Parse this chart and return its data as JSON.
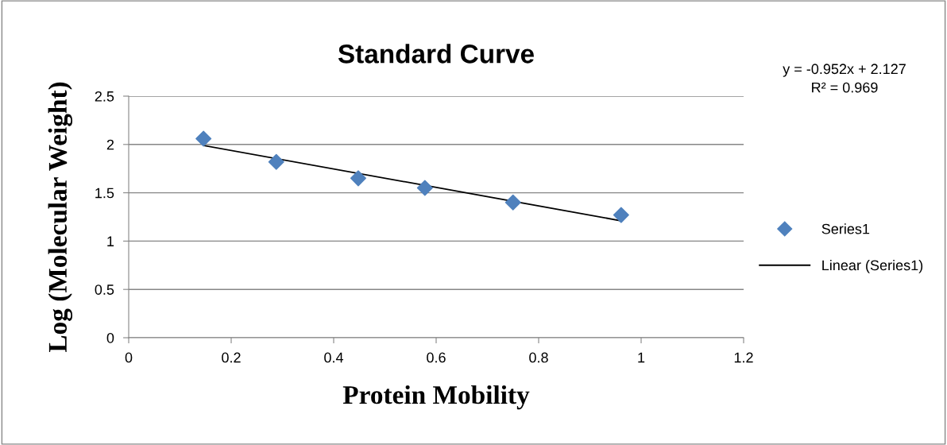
{
  "chart_data": {
    "type": "scatter",
    "title": "Standard Curve",
    "xlabel": "Protein Mobility",
    "ylabel": "Log (Molecular Weight)",
    "annotations": [
      "y = -0.952x + 2.127\nR² = 0.969"
    ],
    "series": [
      {
        "name": "Series1",
        "marker": "diamond",
        "color": "#4f81bd",
        "x": [
          0.146,
          0.288,
          0.448,
          0.578,
          0.75,
          0.961
        ],
        "values": [
          2.06,
          1.82,
          1.65,
          1.55,
          1.4,
          1.27
        ]
      },
      {
        "name": "Linear (Series1)",
        "type": "line",
        "marker": "none",
        "line_style": "solid",
        "color": "#000000",
        "x": [
          0.146,
          0.961
        ],
        "values": [
          1.99,
          1.21
        ]
      }
    ],
    "xlim": [
      0,
      1.2
    ],
    "xticks": [
      0,
      0.2,
      0.4,
      0.6,
      0.8,
      1,
      1.2
    ],
    "ylim": [
      0,
      2.5
    ],
    "yticks": [
      0,
      0.5,
      1,
      1.5,
      2,
      2.5
    ],
    "grid": "y",
    "legend": "right"
  }
}
